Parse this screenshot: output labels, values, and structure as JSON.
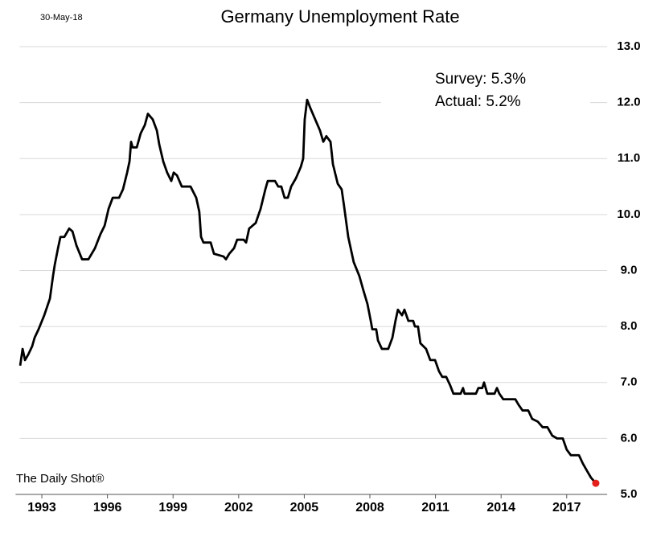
{
  "chart_data": {
    "type": "line",
    "title": "Germany Unemployment Rate",
    "date_label": "30-May-18",
    "source": "The Daily Shot®",
    "annotations": [
      "Survey: 5.3%",
      "Actual:  5.2%"
    ],
    "series": [
      {
        "name": "Germany Unemployment Rate",
        "color": "#000000",
        "x": [
          1992.01,
          1992.12,
          1992.23,
          1992.38,
          1992.56,
          1992.67,
          1992.85,
          1993.11,
          1993.37,
          1993.51,
          1993.59,
          1993.74,
          1993.85,
          1994.03,
          1994.25,
          1994.4,
          1994.58,
          1994.84,
          1995.13,
          1995.43,
          1995.68,
          1995.87,
          1996.05,
          1996.24,
          1996.53,
          1996.71,
          1996.9,
          1997.01,
          1997.08,
          1997.15,
          1997.34,
          1997.52,
          1997.71,
          1997.85,
          1998.07,
          1998.26,
          1998.37,
          1998.55,
          1998.73,
          1998.92,
          1999.03,
          1999.18,
          1999.4,
          1999.8,
          2000.06,
          2000.2,
          2000.28,
          2000.39,
          2000.72,
          2000.87,
          2001.31,
          2001.42,
          2001.57,
          2001.79,
          2001.93,
          2002.23,
          2002.34,
          2002.48,
          2002.78,
          2003.0,
          2003.22,
          2003.33,
          2003.66,
          2003.81,
          2003.95,
          2004.1,
          2004.25,
          2004.4,
          2004.62,
          2004.84,
          2004.95,
          2005.02,
          2005.13,
          2005.28,
          2005.5,
          2005.72,
          2005.87,
          2006.01,
          2006.2,
          2006.31,
          2006.53,
          2006.71,
          2006.82,
          2007.01,
          2007.26,
          2007.52,
          2007.7,
          2007.89,
          2008.04,
          2008.11,
          2008.29,
          2008.37,
          2008.55,
          2008.84,
          2009.03,
          2009.17,
          2009.28,
          2009.47,
          2009.58,
          2009.76,
          2009.98,
          2010.06,
          2010.2,
          2010.31,
          2010.57,
          2010.76,
          2010.98,
          2011.16,
          2011.31,
          2011.49,
          2011.67,
          2011.82,
          2012.15,
          2012.26,
          2012.33,
          2012.85,
          2012.96,
          2013.14,
          2013.22,
          2013.37,
          2013.7,
          2013.81,
          2013.92,
          2014.1,
          2014.65,
          2014.8,
          2014.98,
          2015.24,
          2015.42,
          2015.68,
          2015.9,
          2016.12,
          2016.34,
          2016.56,
          2016.82,
          2017.0,
          2017.19,
          2017.56,
          2017.74,
          2017.96,
          2018.11,
          2018.33
        ],
        "values": [
          7.3,
          7.6,
          7.4,
          7.5,
          7.65,
          7.8,
          7.95,
          8.2,
          8.5,
          8.9,
          9.1,
          9.4,
          9.6,
          9.6,
          9.75,
          9.7,
          9.45,
          9.2,
          9.2,
          9.4,
          9.65,
          9.8,
          10.1,
          10.3,
          10.3,
          10.45,
          10.75,
          10.95,
          11.3,
          11.2,
          11.2,
          11.45,
          11.6,
          11.8,
          11.7,
          11.5,
          11.25,
          10.95,
          10.75,
          10.6,
          10.75,
          10.7,
          10.5,
          10.5,
          10.3,
          10.05,
          9.6,
          9.5,
          9.5,
          9.3,
          9.25,
          9.2,
          9.3,
          9.4,
          9.55,
          9.55,
          9.5,
          9.75,
          9.85,
          10.1,
          10.45,
          10.6,
          10.6,
          10.5,
          10.5,
          10.3,
          10.3,
          10.5,
          10.65,
          10.85,
          11.0,
          11.7,
          12.05,
          11.9,
          11.7,
          11.5,
          11.3,
          11.4,
          11.3,
          10.9,
          10.55,
          10.45,
          10.15,
          9.6,
          9.15,
          8.9,
          8.65,
          8.4,
          8.1,
          7.95,
          7.95,
          7.75,
          7.6,
          7.6,
          7.8,
          8.1,
          8.3,
          8.2,
          8.3,
          8.1,
          8.1,
          8.0,
          8.0,
          7.7,
          7.6,
          7.4,
          7.4,
          7.2,
          7.1,
          7.1,
          6.95,
          6.8,
          6.8,
          6.9,
          6.8,
          6.8,
          6.9,
          6.9,
          7.0,
          6.8,
          6.8,
          6.9,
          6.8,
          6.7,
          6.7,
          6.6,
          6.5,
          6.5,
          6.35,
          6.3,
          6.2,
          6.2,
          6.05,
          6.0,
          6.0,
          5.8,
          5.7,
          5.7,
          5.55,
          5.4,
          5.3,
          5.2
        ],
        "last_point_color": "#e3201b"
      }
    ],
    "xlim": [
      1991.8,
      2018.85
    ],
    "xticks": [
      1993,
      1996,
      1999,
      2002,
      2005,
      2008,
      2011,
      2014,
      2017
    ],
    "ylim": [
      5,
      13
    ],
    "yticks": [
      {
        "value": 5,
        "label": "5.0"
      },
      {
        "value": 6,
        "label": "6.0"
      },
      {
        "value": 7,
        "label": "7.0"
      },
      {
        "value": 8,
        "label": "8.0"
      },
      {
        "value": 9,
        "label": "9.0"
      },
      {
        "value": 10,
        "label": "10.0"
      },
      {
        "value": 11,
        "label": "11.0"
      },
      {
        "value": 12,
        "label": "12.0"
      },
      {
        "value": 13,
        "label": "13.0"
      }
    ],
    "grid": true
  }
}
